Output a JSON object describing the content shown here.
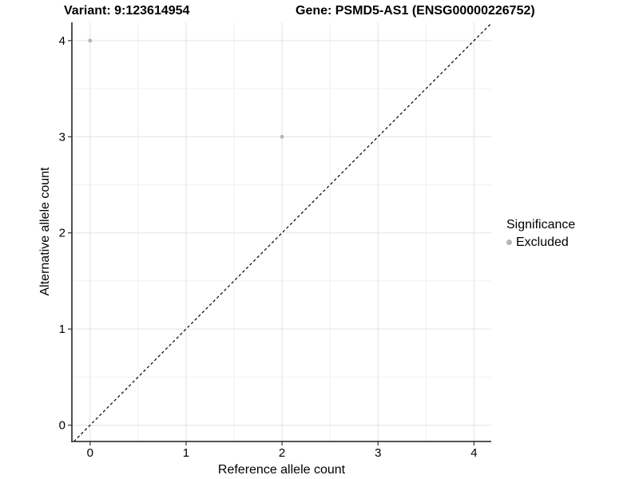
{
  "chart_data": {
    "type": "scatter",
    "title_left": "Variant: 9:123614954",
    "title_right": "Gene: PSMD5-AS1 (ENSG00000226752)",
    "xlabel": "Reference allele count",
    "ylabel": "Alternative allele count",
    "xlim": [
      -0.19,
      4.18
    ],
    "ylim": [
      -0.17,
      4.19
    ],
    "x_ticks": [
      0,
      1,
      2,
      3,
      4
    ],
    "y_ticks": [
      0,
      1,
      2,
      3,
      4
    ],
    "x_minor_ticks": [
      0.5,
      1.5,
      2.5,
      3.5
    ],
    "y_minor_ticks": [
      0.5,
      1.5,
      2.5,
      3.5
    ],
    "grid": true,
    "series": [
      {
        "name": "Excluded",
        "color": "#b5b5b5",
        "points": [
          [
            0,
            4
          ],
          [
            2,
            3
          ]
        ]
      }
    ],
    "reference_line": {
      "type": "identity",
      "style": "dashed",
      "color": "#000000"
    },
    "legend": {
      "title": "Significance",
      "position": "right",
      "items": [
        {
          "label": "Excluded",
          "color": "#b5b5b5"
        }
      ]
    },
    "colors": {
      "grid_major": "#e5e5e5",
      "grid_minor": "#f0f0f0",
      "axis_line": "#3c3c3c",
      "tick": "#333333",
      "background": "#ffffff"
    }
  }
}
